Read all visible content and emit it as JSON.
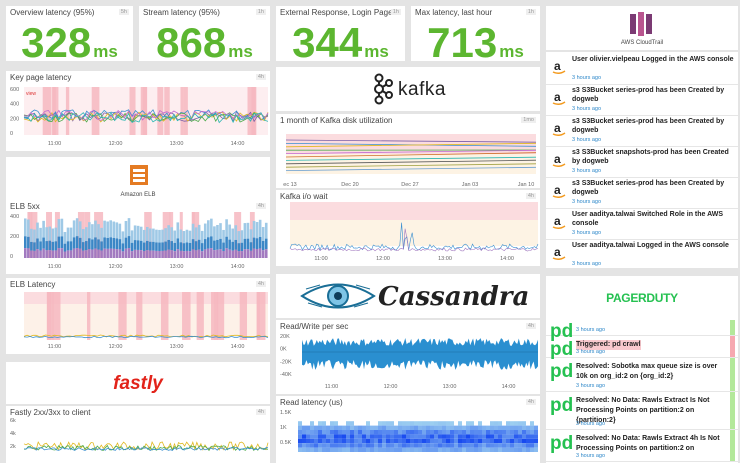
{
  "top_stats": [
    {
      "title": "Overview latency (95%)",
      "badge": "5h",
      "value": "328",
      "unit": "ms"
    },
    {
      "title": "Stream latency (95%)",
      "badge": "1h",
      "value": "868",
      "unit": "ms"
    },
    {
      "title": "External Response, Login Page",
      "badge": "1h",
      "value": "344",
      "unit": "ms"
    },
    {
      "title": "Max latency, last hour",
      "badge": "1h",
      "value": "713",
      "unit": "ms"
    }
  ],
  "cloudtrail": {
    "logo_label": "AWS CloudTrail",
    "events": [
      {
        "text": "User olivier.vielpeau Logged in the AWS console",
        "time": "3 hours ago"
      },
      {
        "text": "s3 S3Bucket series-prod has been Created by dogweb",
        "time": "3 hours ago"
      },
      {
        "text": "s3 S3Bucket series-prod has been Created by dogweb",
        "time": "3 hours ago"
      },
      {
        "text": "s3 S3Bucket snapshots-prod has been Created by dogweb",
        "time": "3 hours ago"
      },
      {
        "text": "s3 S3Bucket series-prod has been Created by dogweb",
        "time": "3 hours ago"
      },
      {
        "text": "User aaditya.talwai Switched Role in the AWS console",
        "time": "3 hours ago"
      },
      {
        "text": "User aaditya.talwai Logged in the AWS console",
        "time": "3 hours ago"
      }
    ]
  },
  "key_page_latency": {
    "title": "Key page latency",
    "badge": "4h",
    "marker": "view",
    "yticks": [
      "600",
      "400",
      "200",
      "0"
    ],
    "xticks": [
      "11:00",
      "12:00",
      "13:00",
      "14:00"
    ]
  },
  "elb": {
    "logo_label": "Amazon ELB"
  },
  "elb_5xx": {
    "title": "ELB 5xx",
    "badge": "4h",
    "yticks": [
      "400",
      "200",
      "0"
    ],
    "xticks": [
      "11:00",
      "12:00",
      "13:00",
      "14:00"
    ]
  },
  "elb_latency": {
    "title": "ELB Latency",
    "badge": "4h",
    "xticks": [
      "11:00",
      "12:00",
      "13:00",
      "14:00"
    ]
  },
  "fastly": {
    "logo_label": "fastly"
  },
  "fastly_chart": {
    "title": "Fastly 2xx/3xx to client",
    "badge": "4h",
    "yticks": [
      "6k",
      "4k",
      "2k"
    ]
  },
  "kafka": {
    "logo_label": "kafka"
  },
  "kafka_disk": {
    "title": "1 month of Kafka disk utilization",
    "badge": "1mo",
    "xticks": [
      "ec 13",
      "Dec 20",
      "Dec 27",
      "Jan 03",
      "Jan 10"
    ]
  },
  "kafka_io": {
    "title": "Kafka i/o wait",
    "badge": "4h",
    "xticks": [
      "11:00",
      "12:00",
      "13:00",
      "14:00"
    ]
  },
  "cassandra": {
    "logo_label": "Cassandra"
  },
  "cassandra_rw": {
    "title": "Read/Write per sec",
    "badge": "4h",
    "yticks": [
      "20K",
      "0K",
      "-20K",
      "-40K"
    ],
    "xticks": [
      "11:00",
      "12:00",
      "13:00",
      "14:00"
    ]
  },
  "cassandra_read": {
    "title": "Read latency (us)",
    "badge": "4h",
    "yticks": [
      "1.5K",
      "1K",
      "0.5K"
    ]
  },
  "pagerduty": {
    "logo_label": "PAGERDUTY",
    "badge_text": "pd",
    "events": [
      {
        "text": "",
        "time": "3 hours ago",
        "status": "green"
      },
      {
        "text": "Triggered: pd crawl",
        "time": "3 hours ago",
        "status": "red"
      },
      {
        "text": "Resolved: Sobotka max queue size is over 10k on org_id:2 on {org_id:2}",
        "time": "3 hours ago",
        "status": "green"
      },
      {
        "text": "Resolved: No Data: Rawls Extract Is Not Processing Points on partition:2 on {partition:2}",
        "time": "3 hours ago",
        "status": "green"
      },
      {
        "text": "Resolved: No Data: Rawls Extract 4h Is Not Processing Points on partition:2 on",
        "time": "3 hours ago",
        "status": "green"
      }
    ]
  },
  "colors": {
    "stat_green": "#5cb630",
    "alert_red": "#f6a8b0",
    "pd_green": "#25c151",
    "link_blue": "#2c87c9"
  }
}
